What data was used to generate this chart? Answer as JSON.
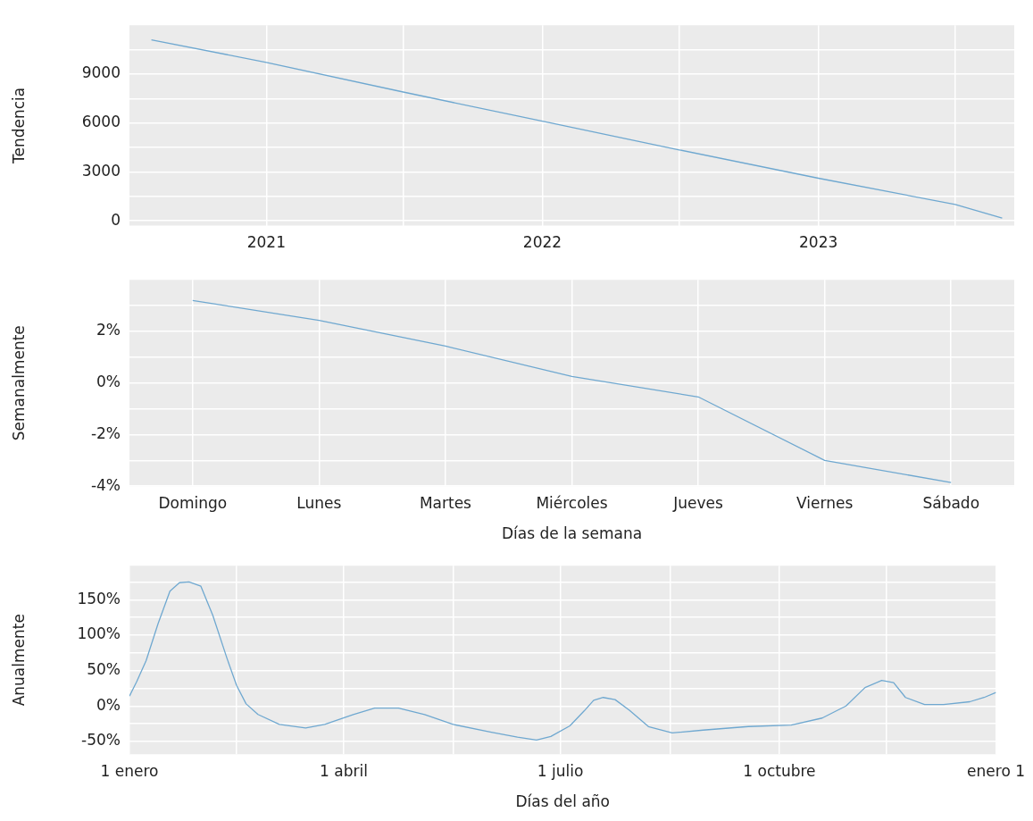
{
  "chart_data": [
    {
      "type": "line",
      "ylabel": "Tendencia",
      "grid": true,
      "line_style": "solid",
      "marker": "none",
      "x": [
        "2020-08-02",
        "2021-01-01",
        "2021-07-01",
        "2022-01-01",
        "2022-07-01",
        "2023-01-01",
        "2023-07-01",
        "2023-09-01"
      ],
      "series": [
        {
          "color": "#6fa8d0",
          "values": [
            11100,
            9720,
            7900,
            6110,
            4350,
            2610,
            1000,
            170
          ]
        }
      ],
      "xlim": [
        "2020-07-04",
        "2023-09-17"
      ],
      "xticks": [
        {
          "value": "2021",
          "label": "2021"
        },
        {
          "value": "2021-07",
          "label": null
        },
        {
          "value": "2022",
          "label": "2022"
        },
        {
          "value": "2022-07",
          "label": null
        },
        {
          "value": "2023",
          "label": "2023"
        },
        {
          "value": "2023-07",
          "label": null
        }
      ],
      "ylim": [
        -300,
        12000
      ],
      "yticks": [
        0,
        {
          "value": 1500,
          "label": null
        },
        3000,
        {
          "value": 4500,
          "label": null
        },
        6000,
        {
          "value": 7500,
          "label": null
        },
        9000,
        {
          "value": 10500,
          "label": null
        }
      ]
    },
    {
      "type": "line",
      "ylabel": "Semanalmente",
      "xlabel": "Días de la semana",
      "grid": true,
      "line_style": "solid",
      "marker": "none",
      "categories": [
        "Domingo",
        "Lunes",
        "Martes",
        "Miércoles",
        "Jueves",
        "Viernes",
        "Sábado"
      ],
      "series": [
        {
          "color": "#6fa8d0",
          "values": [
            3.2,
            2.43,
            1.43,
            0.25,
            -0.54,
            -3.0,
            -3.86
          ]
        }
      ],
      "ylim": [
        -4,
        4
      ],
      "yticks": [
        {
          "value": -4,
          "label": "-4%"
        },
        {
          "value": -3,
          "label": null
        },
        {
          "value": -2,
          "label": "-2%"
        },
        {
          "value": -1,
          "label": null
        },
        {
          "value": 0,
          "label": "0%"
        },
        {
          "value": 1,
          "label": null
        },
        {
          "value": 2,
          "label": "2%"
        },
        {
          "value": 3,
          "label": null
        }
      ]
    },
    {
      "type": "line",
      "ylabel": "Anualmente",
      "xlabel": "Días del año",
      "grid": true,
      "line_style": "solid",
      "marker": "none",
      "x": [
        "--01-01",
        "--01-04",
        "--01-08",
        "--01-13",
        "--01-18",
        "--01-22",
        "--01-26",
        "--01-31",
        "--02-05",
        "--02-11",
        "--02-15",
        "--02-19",
        "--02-24",
        "--03-05",
        "--03-16",
        "--03-24",
        "--04-05",
        "--04-14",
        "--04-24",
        "--05-05",
        "--05-17",
        "--06-02",
        "--06-13",
        "--06-21",
        "--06-27",
        "--07-05",
        "--07-11",
        "--07-15",
        "--07-19",
        "--07-24",
        "--07-30",
        "--08-07",
        "--08-17",
        "--08-30",
        "--09-18",
        "--10-06",
        "--10-19",
        "--10-29",
        "--11-06",
        "--11-13",
        "--11-18",
        "--11-23",
        "--12-01",
        "--12-09",
        "--12-20",
        "--12-26",
        "--12-31"
      ],
      "series": [
        {
          "color": "#6fa8d0",
          "values": [
            14,
            34,
            64,
            116,
            162,
            174,
            175,
            169,
            128,
            67,
            29,
            3,
            -12,
            -26,
            -31,
            -26,
            -12,
            -3,
            -3,
            -12,
            -26,
            -37,
            -44,
            -48,
            -43,
            -28,
            -7,
            8,
            12,
            9,
            -6,
            -29,
            -38,
            -34,
            -29,
            -27,
            -17,
            0,
            26,
            36,
            33,
            12,
            2,
            2,
            6,
            12,
            19
          ]
        }
      ],
      "xlim": [
        "--01-01",
        "--12-31"
      ],
      "xticks": [
        {
          "value": "--01-01",
          "label": "1 enero"
        },
        {
          "value": "--02-15",
          "label": null
        },
        {
          "value": "--04-01",
          "label": "1 abril"
        },
        {
          "value": "--05-17",
          "label": null
        },
        {
          "value": "--07-01",
          "label": "1 julio"
        },
        {
          "value": "--08-16",
          "label": null
        },
        {
          "value": "--10-01",
          "label": "1 octubre"
        },
        {
          "value": "--11-15",
          "label": null
        },
        {
          "value": "--12-31",
          "label": "enero 1"
        }
      ],
      "ylim": [
        -68,
        198
      ],
      "yticks": [
        {
          "value": -50,
          "label": "-50%"
        },
        {
          "value": -25,
          "label": null
        },
        {
          "value": 0,
          "label": "0%"
        },
        {
          "value": 25,
          "label": null
        },
        {
          "value": 50,
          "label": "50%"
        },
        {
          "value": 75,
          "label": null
        },
        {
          "value": 100,
          "label": "100%"
        },
        {
          "value": 125,
          "label": null
        },
        {
          "value": 150,
          "label": "150%"
        },
        {
          "value": 175,
          "label": null
        }
      ]
    }
  ]
}
